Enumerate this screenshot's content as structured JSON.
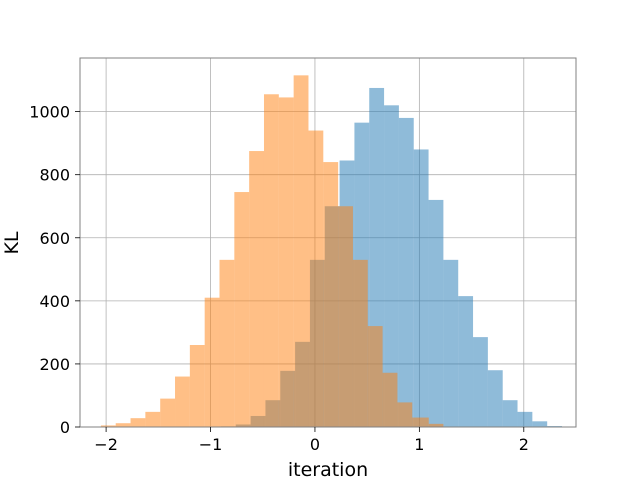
{
  "chart_data": {
    "type": "bar",
    "title": "",
    "xlabel": "iteration",
    "ylabel": "KL",
    "xlim": [
      -2.25,
      2.5
    ],
    "ylim": [
      0,
      1170
    ],
    "xticks": [
      -2,
      -1,
      0,
      1,
      2
    ],
    "xtick_labels": [
      "−2",
      "−1",
      "0",
      "1",
      "2"
    ],
    "yticks": [
      0,
      200,
      400,
      600,
      800,
      1000
    ],
    "ytick_labels": [
      "0",
      "200",
      "400",
      "600",
      "800",
      "1000"
    ],
    "grid": true,
    "legend": "none",
    "series": [
      {
        "color": "#1f77b4",
        "alpha": 0.5,
        "bin_edges": [
          -0.9,
          -0.758,
          -0.616,
          -0.474,
          -0.332,
          -0.19,
          -0.048,
          0.094,
          0.236,
          0.378,
          0.52,
          0.662,
          0.804,
          0.946,
          1.088,
          1.23,
          1.372,
          1.514,
          1.656,
          1.798,
          1.94,
          2.082,
          2.224,
          2.366
        ],
        "counts": [
          2,
          8,
          35,
          85,
          178,
          270,
          530,
          700,
          845,
          965,
          1075,
          1020,
          980,
          880,
          720,
          530,
          415,
          285,
          180,
          85,
          48,
          18,
          3
        ]
      },
      {
        "color": "#ff7f0e",
        "alpha": 0.5,
        "bin_edges": [
          -2.05,
          -1.908,
          -1.766,
          -1.624,
          -1.482,
          -1.34,
          -1.198,
          -1.056,
          -0.914,
          -0.772,
          -0.63,
          -0.488,
          -0.346,
          -0.204,
          -0.062,
          0.08,
          0.222,
          0.364,
          0.506,
          0.648,
          0.79,
          0.932,
          1.09,
          1.23
        ],
        "counts": [
          5,
          12,
          28,
          48,
          90,
          160,
          260,
          410,
          530,
          745,
          875,
          1055,
          1045,
          1115,
          940,
          840,
          700,
          530,
          320,
          172,
          78,
          30,
          10
        ]
      }
    ]
  }
}
